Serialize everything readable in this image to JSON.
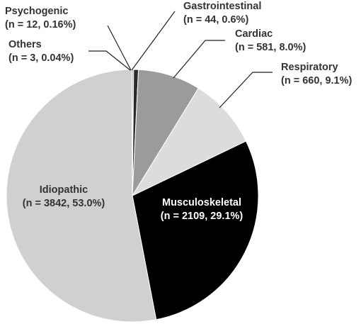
{
  "chart_data": {
    "type": "pie",
    "title": "",
    "slices": [
      {
        "name": "Psychogenic",
        "n_label": "(n = 12, 0.16%)",
        "value": 12,
        "percent": 0.16,
        "color": "#6b6b6b"
      },
      {
        "name": "Gastrointestinal",
        "n_label": "(n = 44, 0.6%)",
        "value": 44,
        "percent": 0.6,
        "color": "#2a2a2a"
      },
      {
        "name": "Cardiac",
        "n_label": "(n = 581, 8.0%)",
        "value": 581,
        "percent": 8.0,
        "color": "#9b9b9b"
      },
      {
        "name": "Respiratory",
        "n_label": "(n = 660, 9.1%)",
        "value": 660,
        "percent": 9.1,
        "color": "#dcdcdc"
      },
      {
        "name": "Musculoskeletal",
        "n_label": "(n = 2109, 29.1%)",
        "value": 2109,
        "percent": 29.1,
        "color": "#000000"
      },
      {
        "name": "Idiopathic",
        "n_label": "(n = 3842, 53.0%)",
        "value": 3842,
        "percent": 53.0,
        "color": "#d0d0d0"
      },
      {
        "name": "Others",
        "n_label": "(n = 3, 0.04%)",
        "value": 3,
        "percent": 0.04,
        "color": "#1a1a1a"
      }
    ],
    "slice_edge_color": "#ffffff",
    "legend": "none",
    "labels": "callouts"
  }
}
